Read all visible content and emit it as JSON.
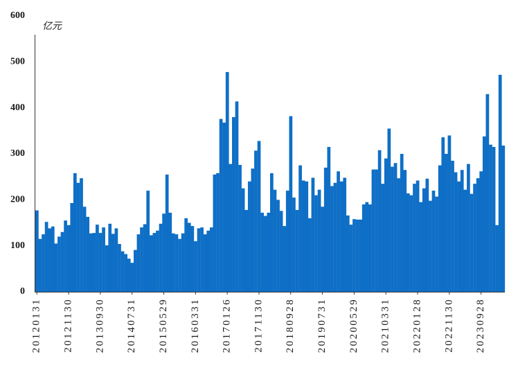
{
  "chart_data": {
    "type": "bar",
    "title": "",
    "xlabel": "",
    "ylabel": "亿元",
    "ylim": [
      0,
      600
    ],
    "yticks": [
      0,
      100,
      200,
      300,
      400,
      500,
      600
    ],
    "grid": false,
    "legend": "none",
    "bar_color": "#0F6FC6",
    "axis_color": "#333333",
    "x_ticks": [
      {
        "at": 0,
        "label": "20120131"
      },
      {
        "at": 10,
        "label": "20121130"
      },
      {
        "at": 20,
        "label": "20130930"
      },
      {
        "at": 30,
        "label": "20140731"
      },
      {
        "at": 40,
        "label": "20150529"
      },
      {
        "at": 50,
        "label": "20160331"
      },
      {
        "at": 60,
        "label": "20170126"
      },
      {
        "at": 70,
        "label": "20171130"
      },
      {
        "at": 80,
        "label": "20180928"
      },
      {
        "at": 90,
        "label": "20190731"
      },
      {
        "at": 100,
        "label": "20200529"
      },
      {
        "at": 110,
        "label": "20210331"
      },
      {
        "at": 120,
        "label": "20220128"
      },
      {
        "at": 130,
        "label": "20221130"
      },
      {
        "at": 140,
        "label": "20230928"
      }
    ],
    "values": [
      177,
      115,
      125,
      152,
      138,
      142,
      105,
      120,
      130,
      155,
      145,
      193,
      258,
      237,
      247,
      185,
      163,
      127,
      128,
      146,
      128,
      140,
      101,
      148,
      126,
      138,
      104,
      88,
      82,
      72,
      63,
      91,
      125,
      140,
      147,
      220,
      123,
      128,
      133,
      148,
      170,
      255,
      172,
      127,
      125,
      115,
      127,
      160,
      150,
      143,
      110,
      138,
      140,
      125,
      133,
      140,
      255,
      258,
      376,
      368,
      478,
      278,
      380,
      414,
      276,
      225,
      178,
      240,
      268,
      307,
      328,
      172,
      165,
      172,
      258,
      222,
      200,
      176,
      143,
      220,
      382,
      205,
      178,
      275,
      242,
      240,
      160,
      248,
      210,
      222,
      185,
      270,
      315,
      230,
      237,
      262,
      240,
      248,
      166,
      146,
      158,
      157,
      157,
      190,
      195,
      190,
      266,
      266,
      308,
      235,
      290,
      355,
      272,
      280,
      247,
      300,
      265,
      214,
      210,
      235,
      242,
      195,
      225,
      246,
      198,
      220,
      207,
      275,
      336,
      300,
      340,
      285,
      260,
      240,
      265,
      222,
      278,
      213,
      235,
      247,
      262,
      338,
      430,
      320,
      315,
      145,
      472,
      318
    ]
  }
}
